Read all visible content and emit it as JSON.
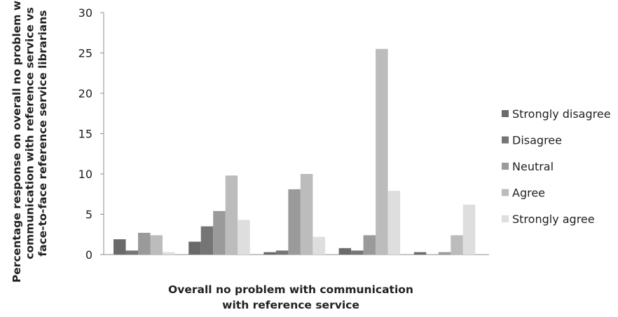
{
  "chart_data": {
    "type": "bar",
    "title": "",
    "xlabel": [
      "Overall no problem with communication",
      "with reference service"
    ],
    "ylabel": [
      "Percentage response on overall no problem with",
      "communication with reference service vs",
      "face-to-face reference service librarians"
    ],
    "ylim": [
      0,
      30
    ],
    "yticks": [
      0,
      5,
      10,
      15,
      20,
      25,
      30
    ],
    "categories": [
      "",
      "",
      "",
      "",
      ""
    ],
    "series": [
      {
        "name": "Strongly disagree",
        "color": "#6a6a6a",
        "values": [
          1.9,
          1.6,
          0.3,
          0.8,
          0.3
        ]
      },
      {
        "name": "Disagree",
        "color": "#757575",
        "values": [
          0.5,
          3.5,
          0.5,
          0.5,
          0.0
        ]
      },
      {
        "name": "Neutral",
        "color": "#9a9a9a",
        "values": [
          2.7,
          5.4,
          8.1,
          2.4,
          0.3
        ]
      },
      {
        "name": "Agree",
        "color": "#bcbcbc",
        "values": [
          2.4,
          9.8,
          10.0,
          25.5,
          2.4
        ]
      },
      {
        "name": "Strongly agree",
        "color": "#dedede",
        "values": [
          0.3,
          4.3,
          2.2,
          7.9,
          6.2
        ]
      }
    ],
    "grid": false,
    "legend_position": "right"
  }
}
